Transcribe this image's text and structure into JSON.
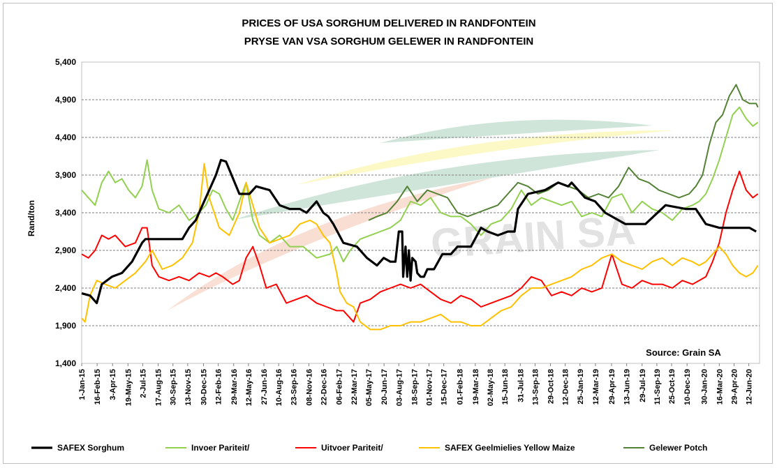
{
  "chart_data": {
    "type": "line",
    "title_line1": "PRICES OF USA SORGHUM DELIVERED IN RANDFONTEIN",
    "title_line2": "PRYSE VAN VSA SORGHUM GELEWER IN RANDFONTEIN",
    "ylabel": "Rand/ton",
    "xlabel": "",
    "source": "Source: Grain SA",
    "watermark": "GRAIN SA",
    "ylim": [
      1400,
      5400
    ],
    "yticks": [
      "1,400",
      "1,900",
      "2,400",
      "2,900",
      "3,400",
      "3,900",
      "4,400",
      "4,900",
      "5,400"
    ],
    "ytick_values": [
      1400,
      1900,
      2400,
      2900,
      3400,
      3900,
      4400,
      4900,
      5400
    ],
    "xlim": [
      0,
      2020
    ],
    "x_unit": "days since 1-Jan-15",
    "xticks": [
      "1-Jan-15",
      "16-Feb-15",
      "3-Apr-15",
      "19-May-15",
      "2-Jul-15",
      "17-Aug-15",
      "30-Sep-15",
      "13-Nov-15",
      "30-Dec-15",
      "12-Feb-16",
      "29-Mar-16",
      "12-May-16",
      "27-Jun-16",
      "10-Aug-16",
      "23-Sep-16",
      "08-Nov-16",
      "22-Dec-16",
      "06-Feb-17",
      "22-Mar-17",
      "05-May-17",
      "20-Jun-17",
      "03-Aug-17",
      "18-Sep-17",
      "01-Nov-17",
      "15-Dec-17",
      "01-Feb-18",
      "19-Mar-18",
      "02-May-18",
      "15-Jun-18",
      "31-Jul-18",
      "13-Sep-18",
      "29-Oct-18",
      "12-Dec-18",
      "25-Jan-19",
      "12-Mar-19",
      "29-Apr-19",
      "13-Jun-19",
      "29-Jul-19",
      "11-Sep-19",
      "25-Oct-19",
      "10-Dec-19",
      "30-Jan-20",
      "16-Mar-20",
      "29-Apr-20",
      "12-Jun-20"
    ],
    "xtick_values": [
      0,
      46,
      92,
      138,
      182,
      228,
      272,
      316,
      363,
      407,
      453,
      497,
      543,
      587,
      631,
      677,
      721,
      767,
      811,
      855,
      901,
      945,
      991,
      1035,
      1079,
      1127,
      1173,
      1217,
      1261,
      1307,
      1351,
      1397,
      1441,
      1485,
      1531,
      1579,
      1624,
      1670,
      1714,
      1758,
      1804,
      1855,
      1900,
      1944,
      1988
    ],
    "grid": true,
    "legend_position": "bottom",
    "series": [
      {
        "name": "SAFEX Sorghum",
        "color": "#000000",
        "x": [
          0,
          25,
          45,
          60,
          90,
          120,
          150,
          180,
          190,
          220,
          260,
          300,
          320,
          340,
          360,
          380,
          400,
          415,
          430,
          470,
          480,
          500,
          510,
          520,
          560,
          590,
          620,
          650,
          670,
          690,
          700,
          720,
          735,
          750,
          780,
          820,
          850,
          880,
          900,
          920,
          935,
          945,
          955,
          958,
          965,
          970,
          975,
          980,
          985,
          995,
          1000,
          1010,
          1020,
          1030,
          1050,
          1075,
          1100,
          1120,
          1135,
          1160,
          1190,
          1210,
          1240,
          1270,
          1290,
          1300,
          1330,
          1380,
          1420,
          1450,
          1460,
          1500,
          1530,
          1560,
          1580,
          1620,
          1660,
          1680,
          1740,
          1800,
          1830,
          1860,
          1900,
          1950,
          1990,
          2010
        ],
        "y": [
          2330,
          2300,
          2200,
          2450,
          2550,
          2600,
          2750,
          3000,
          3050,
          3050,
          3050,
          3050,
          3200,
          3300,
          3500,
          3700,
          3900,
          4100,
          4080,
          3650,
          3650,
          3650,
          3700,
          3750,
          3700,
          3500,
          3450,
          3450,
          3400,
          3500,
          3550,
          3400,
          3350,
          3250,
          3000,
          2950,
          2800,
          2700,
          2800,
          2750,
          2750,
          3150,
          3150,
          2550,
          2950,
          2550,
          2900,
          2500,
          2800,
          2750,
          2600,
          2550,
          2550,
          2650,
          2650,
          2850,
          2850,
          2950,
          2950,
          2950,
          3200,
          3150,
          3100,
          3150,
          3150,
          3450,
          3650,
          3700,
          3800,
          3750,
          3800,
          3600,
          3550,
          3400,
          3350,
          3250,
          3250,
          3250,
          3500,
          3450,
          3450,
          3250,
          3200,
          3200,
          3200,
          3150
        ]
      },
      {
        "name": "Invoer Pariteit/",
        "color": "#92d050",
        "x": [
          0,
          20,
          40,
          60,
          80,
          100,
          120,
          140,
          160,
          180,
          195,
          210,
          230,
          260,
          290,
          320,
          350,
          370,
          390,
          410,
          430,
          450,
          470,
          490,
          510,
          530,
          560,
          590,
          620,
          660,
          700,
          740,
          760,
          780,
          800,
          830,
          860,
          890,
          920,
          950,
          980,
          1010,
          1040,
          1070,
          1100,
          1130,
          1160,
          1190,
          1220,
          1250,
          1280,
          1310,
          1340,
          1370,
          1400,
          1430,
          1460,
          1490,
          1520,
          1550,
          1580,
          1610,
          1640,
          1670,
          1700,
          1730,
          1760,
          1790,
          1820,
          1840,
          1860,
          1880,
          1900,
          1920,
          1940,
          1960,
          1980,
          2000,
          2015
        ],
        "y": [
          3700,
          3600,
          3500,
          3800,
          3950,
          3800,
          3850,
          3700,
          3600,
          3750,
          4100,
          3700,
          3450,
          3400,
          3500,
          3300,
          3400,
          3500,
          3700,
          3650,
          3450,
          3300,
          3550,
          3800,
          3300,
          3100,
          3000,
          3100,
          2950,
          2950,
          2800,
          2850,
          2950,
          2750,
          2900,
          3050,
          3100,
          3150,
          3200,
          3300,
          3550,
          3500,
          3600,
          3400,
          3350,
          3350,
          3250,
          3100,
          3250,
          3300,
          3450,
          3700,
          3500,
          3600,
          3550,
          3500,
          3550,
          3350,
          3400,
          3350,
          3600,
          3650,
          3400,
          3550,
          3450,
          3400,
          3300,
          3450,
          3500,
          3550,
          3650,
          3850,
          4100,
          4400,
          4700,
          4800,
          4650,
          4550,
          4600
        ]
      },
      {
        "name": "Uitvoer Pariteit/",
        "color": "#ff0000",
        "x": [
          0,
          20,
          40,
          60,
          80,
          100,
          130,
          160,
          180,
          195,
          210,
          230,
          260,
          290,
          320,
          350,
          380,
          400,
          420,
          450,
          470,
          490,
          510,
          530,
          550,
          580,
          610,
          640,
          670,
          700,
          730,
          760,
          780,
          800,
          810,
          830,
          860,
          890,
          920,
          950,
          980,
          1010,
          1040,
          1070,
          1100,
          1130,
          1160,
          1190,
          1220,
          1250,
          1280,
          1310,
          1340,
          1370,
          1400,
          1430,
          1460,
          1490,
          1520,
          1550,
          1580,
          1610,
          1640,
          1670,
          1700,
          1730,
          1760,
          1790,
          1820,
          1840,
          1860,
          1880,
          1900,
          1920,
          1940,
          1960,
          1980,
          2000,
          2015
        ],
        "y": [
          2850,
          2800,
          2900,
          3100,
          3050,
          3100,
          2950,
          3000,
          3200,
          3200,
          2700,
          2550,
          2500,
          2550,
          2500,
          2600,
          2550,
          2600,
          2550,
          2450,
          2500,
          2800,
          2950,
          2700,
          2400,
          2450,
          2200,
          2250,
          2300,
          2200,
          2150,
          2100,
          2100,
          2000,
          1950,
          2200,
          2250,
          2350,
          2400,
          2450,
          2400,
          2450,
          2350,
          2250,
          2200,
          2300,
          2250,
          2150,
          2200,
          2250,
          2300,
          2400,
          2550,
          2500,
          2300,
          2350,
          2300,
          2400,
          2350,
          2400,
          2850,
          2450,
          2400,
          2500,
          2450,
          2450,
          2400,
          2500,
          2450,
          2500,
          2550,
          2750,
          3000,
          3400,
          3700,
          3950,
          3700,
          3600,
          3650
        ]
      },
      {
        "name": "SAFEX Geelmielies Yellow Maize",
        "color": "#ffc000",
        "x": [
          0,
          10,
          25,
          45,
          70,
          100,
          130,
          160,
          190,
          210,
          240,
          270,
          300,
          330,
          350,
          365,
          380,
          410,
          440,
          470,
          490,
          510,
          530,
          560,
          590,
          620,
          650,
          680,
          700,
          720,
          740,
          760,
          770,
          790,
          810,
          830,
          860,
          890,
          920,
          950,
          980,
          1010,
          1040,
          1070,
          1100,
          1130,
          1160,
          1190,
          1220,
          1250,
          1280,
          1310,
          1340,
          1370,
          1400,
          1430,
          1460,
          1490,
          1520,
          1550,
          1580,
          1610,
          1640,
          1670,
          1700,
          1730,
          1760,
          1790,
          1820,
          1840,
          1860,
          1880,
          1900,
          1920,
          1940,
          1960,
          1980,
          2000,
          2015
        ],
        "y": [
          2000,
          1950,
          2300,
          2500,
          2450,
          2400,
          2500,
          2600,
          2750,
          2900,
          2650,
          2700,
          2800,
          3000,
          3400,
          4050,
          3600,
          3200,
          3100,
          3400,
          3800,
          3500,
          3200,
          3000,
          3050,
          3100,
          3250,
          3300,
          3250,
          3100,
          3000,
          2600,
          2350,
          2200,
          2150,
          1950,
          1850,
          1850,
          1900,
          1900,
          1950,
          1950,
          2000,
          2050,
          1950,
          1950,
          1900,
          1900,
          2000,
          2100,
          2150,
          2300,
          2400,
          2400,
          2450,
          2500,
          2550,
          2650,
          2700,
          2800,
          2850,
          2750,
          2700,
          2650,
          2750,
          2800,
          2700,
          2800,
          2750,
          2700,
          2750,
          2850,
          2950,
          2850,
          2700,
          2600,
          2550,
          2600,
          2700
        ]
      },
      {
        "name": "Gelewer Potch",
        "color": "#548235",
        "x": [
          855,
          880,
          910,
          940,
          970,
          1000,
          1030,
          1060,
          1090,
          1120,
          1150,
          1180,
          1210,
          1240,
          1270,
          1300,
          1330,
          1360,
          1390,
          1420,
          1450,
          1480,
          1510,
          1540,
          1570,
          1600,
          1630,
          1660,
          1690,
          1720,
          1750,
          1780,
          1810,
          1830,
          1850,
          1870,
          1890,
          1910,
          1930,
          1950,
          1970,
          1990,
          2010,
          2015
        ],
        "y": [
          3300,
          3350,
          3400,
          3550,
          3750,
          3550,
          3700,
          3650,
          3600,
          3400,
          3350,
          3400,
          3450,
          3500,
          3650,
          3800,
          3750,
          3650,
          3700,
          3800,
          3750,
          3700,
          3600,
          3650,
          3600,
          3750,
          4000,
          3850,
          3800,
          3700,
          3650,
          3600,
          3650,
          3750,
          3900,
          4300,
          4600,
          4700,
          4950,
          5100,
          4900,
          4850,
          4850,
          4800
        ]
      }
    ]
  }
}
